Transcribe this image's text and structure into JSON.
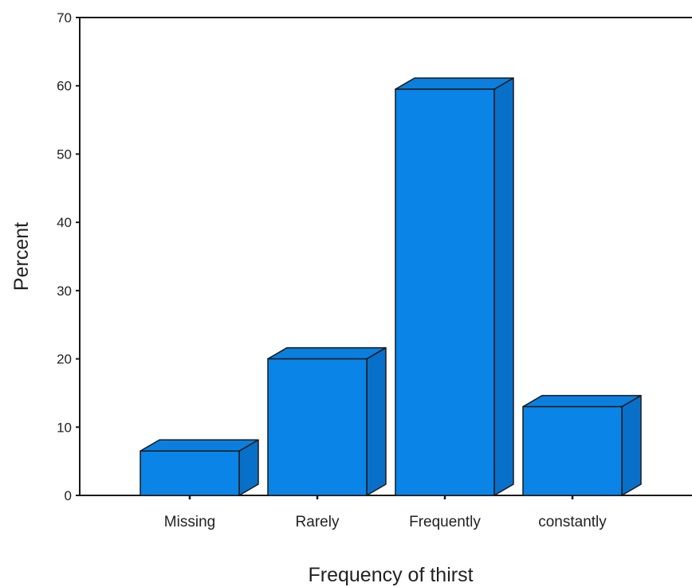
{
  "chart_data": {
    "type": "bar",
    "style": "3d",
    "categories": [
      "Missing",
      "Rarely",
      "Frequently",
      "constantly"
    ],
    "values": [
      6.5,
      20,
      59.5,
      13
    ],
    "title": "",
    "xlabel": "Frequency of thirst",
    "ylabel": "Percent",
    "ylim": [
      0,
      70
    ],
    "yticks": [
      0,
      10,
      20,
      30,
      40,
      50,
      60,
      70
    ],
    "grid": false,
    "legend": "none",
    "colors": {
      "bar_front": "#0a84e6",
      "bar_top": "#0c7fde",
      "bar_side": "#0970c9",
      "outline": "#1a1a1a",
      "axis": "#1a1a1a"
    }
  }
}
